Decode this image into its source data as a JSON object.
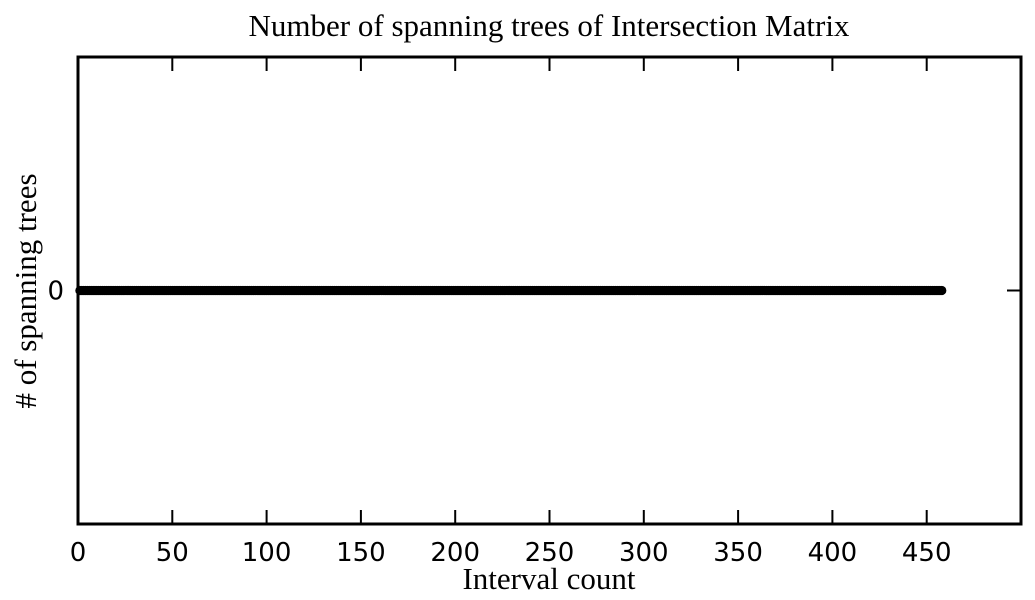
{
  "chart_data": {
    "type": "scatter",
    "title": "Number of spanning trees of Intersection Matrix",
    "xlabel": "Interval count",
    "ylabel": "# of spanning trees",
    "xlim": [
      0,
      500
    ],
    "ylim": [
      -1,
      1
    ],
    "x_ticks": [
      0,
      50,
      100,
      150,
      200,
      250,
      300,
      350,
      400,
      450
    ],
    "y_ticks": [
      0
    ],
    "grid": false,
    "legend": "none",
    "marker_color": "#000000",
    "series": [
      {
        "x_start": 1,
        "x_end": 458,
        "x_step": 1,
        "y": 0
      }
    ]
  }
}
